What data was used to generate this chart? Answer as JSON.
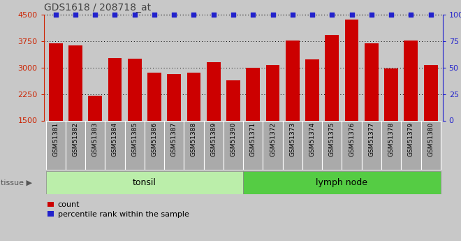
{
  "title": "GDS1618 / 208718_at",
  "categories": [
    "GSM51381",
    "GSM51382",
    "GSM51383",
    "GSM51384",
    "GSM51385",
    "GSM51386",
    "GSM51387",
    "GSM51388",
    "GSM51389",
    "GSM51390",
    "GSM51371",
    "GSM51372",
    "GSM51373",
    "GSM51374",
    "GSM51375",
    "GSM51376",
    "GSM51377",
    "GSM51378",
    "GSM51379",
    "GSM51380"
  ],
  "counts": [
    3680,
    3620,
    2210,
    3270,
    3240,
    2860,
    2820,
    2850,
    3160,
    2630,
    2990,
    3080,
    3760,
    3220,
    3920,
    4360,
    3680,
    2970,
    3760,
    3080
  ],
  "bar_color": "#cc0000",
  "percentile_color": "#2222cc",
  "ylim_left": [
    1500,
    4500
  ],
  "ylim_right": [
    0,
    100
  ],
  "yticks_left": [
    1500,
    2250,
    3000,
    3750,
    4500
  ],
  "yticks_right": [
    0,
    25,
    50,
    75,
    100
  ],
  "groups": [
    {
      "label": "tonsil",
      "start": 0,
      "end": 10,
      "color": "#bbeeaa"
    },
    {
      "label": "lymph node",
      "start": 10,
      "end": 20,
      "color": "#55cc44"
    }
  ],
  "tissue_label": "tissue",
  "legend_count_label": "count",
  "legend_percentile_label": "percentile rank within the sample",
  "fig_bg_color": "#c8c8c8",
  "plot_bg_color": "#c8c8c8",
  "xtick_bg_color": "#b8b8b8",
  "left_axis_color": "#cc2200",
  "right_axis_color": "#2222cc",
  "title_color": "#444444"
}
